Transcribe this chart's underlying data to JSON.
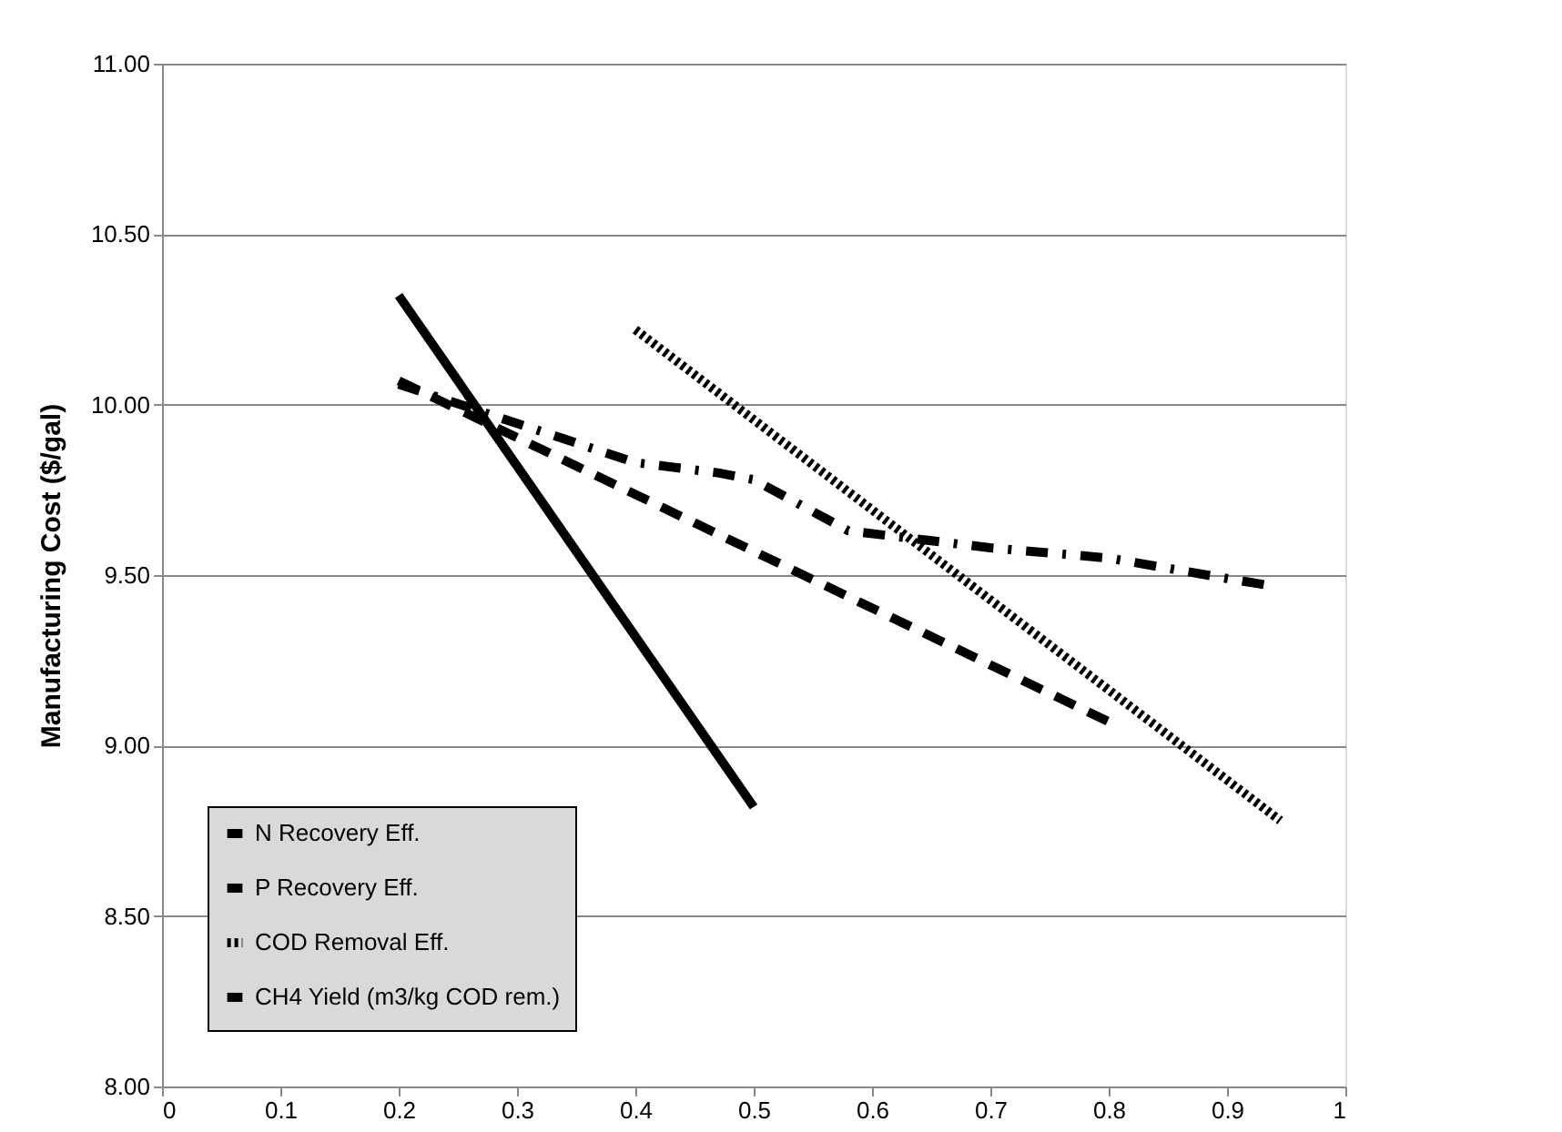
{
  "chart_data": {
    "type": "line",
    "ylabel": "Manufacturing Cost ($/gal)",
    "xlim": [
      0,
      1
    ],
    "xticks": [
      0,
      0.1,
      0.2,
      0.3,
      0.4,
      0.5,
      0.6,
      0.7,
      0.8,
      0.9,
      1
    ],
    "ylim": [
      8,
      11
    ],
    "yticks": [
      {
        "value": 8,
        "label": "8.00"
      },
      {
        "value": 8.5,
        "label": "8.50"
      },
      {
        "value": 9,
        "label": "9.00"
      },
      {
        "value": 9.5,
        "label": "9.50"
      },
      {
        "value": 10,
        "label": "10.00"
      },
      {
        "value": 10.5,
        "label": "10.50"
      },
      {
        "value": 11,
        "label": "11.00"
      }
    ],
    "grid": "y",
    "legend": "bottom left",
    "marker": "none",
    "series": [
      {
        "name": "N Recovery Eff.",
        "color": "#000000",
        "line_style": "dashdot",
        "x": [
          0.2,
          0.4,
          0.47,
          0.5,
          0.58,
          0.7,
          0.8,
          0.9,
          0.935
        ],
        "values": [
          10.06,
          9.83,
          9.8,
          9.78,
          9.63,
          9.58,
          9.55,
          9.49,
          9.47
        ]
      },
      {
        "name": "P Recovery Eff.",
        "color": "#000000",
        "line_style": "dashed",
        "x": [
          0.2,
          0.8
        ],
        "values": [
          10.07,
          9.07
        ]
      },
      {
        "name": "COD Removal Eff.",
        "color": "#000000",
        "line_style": "dotted",
        "x": [
          0.4,
          0.945
        ],
        "values": [
          10.22,
          8.78
        ]
      },
      {
        "name": "CH4 Yield (m3/kg COD rem.)",
        "color": "#000000",
        "line_style": "solid",
        "x": [
          0.2,
          0.5
        ],
        "values": [
          10.32,
          8.82
        ]
      }
    ]
  }
}
